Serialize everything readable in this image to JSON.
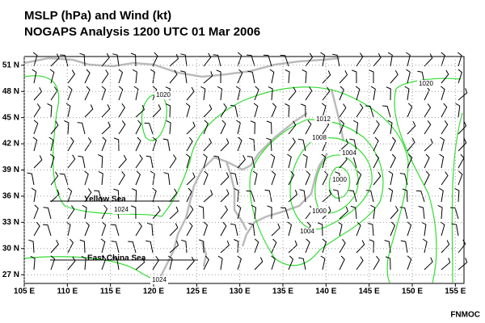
{
  "header": {
    "title": "MSLP (hPa) and Wind (kt)",
    "subtitle": "NOGAPS Analysis 1200 UTC 01 Mar 2006"
  },
  "map": {
    "xlim": [
      105,
      156
    ],
    "ylim": [
      26,
      52
    ],
    "xticks": [
      {
        "value": 105,
        "label": "105 E"
      },
      {
        "value": 110,
        "label": "110 E"
      },
      {
        "value": 115,
        "label": "115 E"
      },
      {
        "value": 120,
        "label": "120 E"
      },
      {
        "value": 125,
        "label": "125 E"
      },
      {
        "value": 130,
        "label": "130 E"
      },
      {
        "value": 135,
        "label": "135 E"
      },
      {
        "value": 140,
        "label": "140 E"
      },
      {
        "value": 145,
        "label": "145 E"
      },
      {
        "value": 150,
        "label": "150 E"
      },
      {
        "value": 155,
        "label": "155 E"
      }
    ],
    "yticks": [
      {
        "value": 27,
        "label": "27 N"
      },
      {
        "value": 30,
        "label": "30 N"
      },
      {
        "value": 33,
        "label": "33 N"
      },
      {
        "value": 36,
        "label": "36 N"
      },
      {
        "value": 39,
        "label": "39 N"
      },
      {
        "value": 42,
        "label": "42 N"
      },
      {
        "value": 45,
        "label": "45 N"
      },
      {
        "value": 48,
        "label": "48 N"
      },
      {
        "value": 51,
        "label": "51 N"
      }
    ],
    "isobar_labels": [
      "1020",
      "1020",
      "1012",
      "1008",
      "1004",
      "1000",
      "1000",
      "1004",
      "1024",
      "1024"
    ],
    "places": [
      "Yellow Sea",
      "East China Sea"
    ]
  },
  "footer": {
    "credit": "FNMOC"
  }
}
